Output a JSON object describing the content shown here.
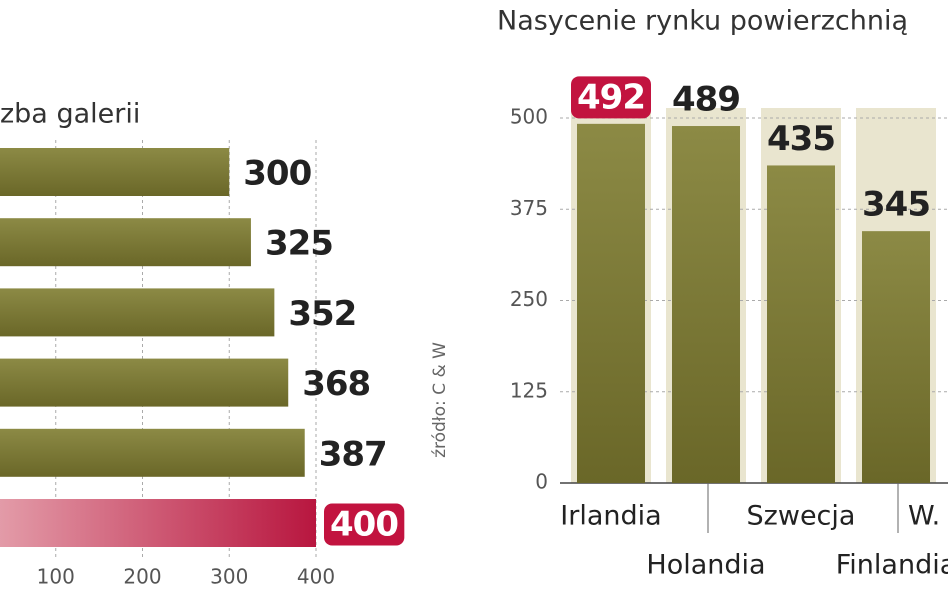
{
  "chart_data": [
    {
      "type": "hbar",
      "title": "zba galerii",
      "values": [
        300,
        325,
        352,
        368,
        387,
        400
      ],
      "colors": [
        "#7d7a35",
        "#7d7a35",
        "#7d7a35",
        "#7d7a35",
        "#7d7a35",
        "#b8163f"
      ],
      "label_colors": [
        "#222",
        "#222",
        "#222",
        "#222",
        "#222",
        "#c2133f"
      ],
      "xlim": [
        0,
        400
      ],
      "xticks": [
        100,
        200,
        300,
        400
      ],
      "grid": true,
      "source": "źródło: C & W"
    },
    {
      "type": "bar",
      "title": "Nasycenie rynku powierzchnią",
      "categories": [
        "Irlandia",
        "Holandia",
        "Szwecja",
        "Finlandia",
        "W."
      ],
      "values": [
        492,
        489,
        435,
        345,
        null
      ],
      "colors": [
        "#7d7a35",
        "#7d7a35",
        "#7d7a35",
        "#7d7a35",
        "#7d7a35"
      ],
      "label_colors": [
        "#c2133f",
        "#222",
        "#222",
        "#222",
        "#222"
      ],
      "ylim": [
        0,
        500
      ],
      "yticks": [
        0,
        125,
        250,
        375,
        500
      ],
      "grid": true
    }
  ]
}
